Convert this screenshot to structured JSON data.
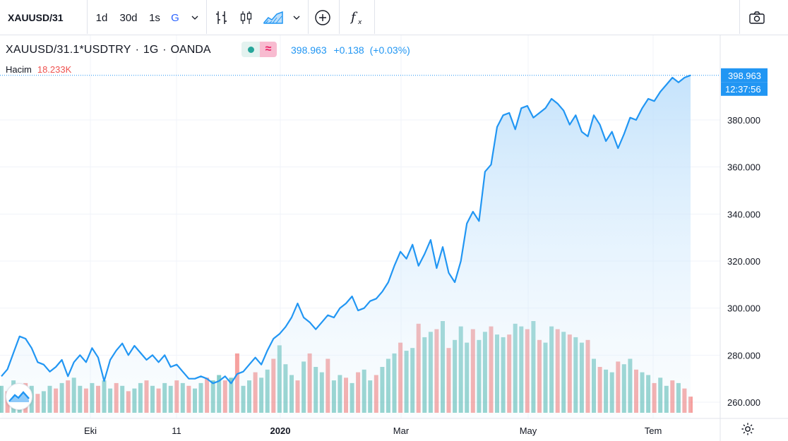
{
  "toolbar": {
    "symbol": "XAUUSD/31",
    "intervals": [
      "1d",
      "30d",
      "1s",
      "G"
    ],
    "active_interval": "G",
    "icons": [
      "chevron-down-icon",
      "bar-chart-icon",
      "candlestick-icon",
      "area-chart-icon",
      "chevron-down-icon",
      "add-compare-icon",
      "function-icon",
      "camera-icon"
    ]
  },
  "legend": {
    "symbol_full": "XAUUSD/31.1*USDTRY",
    "interval": "1G",
    "source": "OANDA",
    "last": "398.963",
    "change": "+0.138",
    "change_pct": "(+0.03%)",
    "volume_label": "Hacim",
    "volume_value": "18.233K",
    "status_symbol": "≈"
  },
  "price_tag": {
    "price": "398.963",
    "countdown": "12:37:56"
  },
  "colors": {
    "line": "#2196f3",
    "area_top": "#bbdefb",
    "vol_up": "#26a69a",
    "vol_down": "#ef5350",
    "tag_bg": "#2196f3"
  },
  "chart_data": {
    "type": "area",
    "y_axis": {
      "ticks": [
        "260.000",
        "280.000",
        "300.000",
        "320.000",
        "340.000",
        "360.000",
        "380.000"
      ],
      "ylim": [
        255,
        405
      ]
    },
    "x_axis": {
      "ticks": [
        "Eki",
        "11",
        "2020",
        "Mar",
        "May",
        "Tem"
      ],
      "bold": [
        "2020"
      ]
    },
    "grid": true,
    "series": [
      {
        "values": [
          271,
          274,
          281,
          288,
          287,
          283,
          277,
          276,
          273,
          275,
          278,
          271,
          277,
          280,
          277,
          283,
          279,
          269,
          278,
          282,
          285,
          280,
          284,
          281,
          278,
          280,
          277,
          280,
          275,
          276,
          273,
          270,
          270,
          271,
          270,
          268,
          269,
          271,
          268,
          272,
          273,
          276,
          279,
          276,
          282,
          287,
          289,
          292,
          296,
          302,
          296,
          294,
          291,
          294,
          297,
          296,
          300,
          302,
          305,
          299,
          300,
          303,
          304,
          307,
          311,
          318,
          324,
          321,
          327,
          318,
          323,
          329,
          317,
          326,
          315,
          311,
          320,
          336,
          341,
          337,
          358,
          361,
          377,
          382,
          383,
          376,
          385,
          386,
          381,
          383,
          385,
          389,
          387,
          384,
          378,
          382,
          375,
          373,
          382,
          378,
          371,
          375,
          368,
          374,
          381,
          380,
          385,
          389,
          388,
          392,
          395,
          398,
          396,
          398,
          399
        ]
      }
    ],
    "volume": {
      "values": [
        10,
        8,
        12,
        9,
        11,
        10,
        7,
        8,
        10,
        9,
        11,
        12,
        13,
        10,
        9,
        11,
        10,
        12,
        9,
        11,
        10,
        8,
        9,
        11,
        12,
        10,
        9,
        11,
        10,
        12,
        11,
        10,
        9,
        11,
        13,
        12,
        14,
        12,
        13,
        22,
        10,
        12,
        15,
        13,
        16,
        20,
        25,
        18,
        14,
        12,
        19,
        22,
        17,
        15,
        20,
        12,
        14,
        13,
        11,
        15,
        16,
        12,
        14,
        17,
        20,
        22,
        26,
        23,
        24,
        33,
        28,
        30,
        31,
        34,
        24,
        27,
        32,
        26,
        31,
        27,
        30,
        32,
        29,
        28,
        29,
        33,
        32,
        31,
        34,
        27,
        26,
        32,
        31,
        30,
        29,
        28,
        26,
        27,
        20,
        17,
        16,
        15,
        19,
        18,
        20,
        16,
        15,
        14,
        11,
        13,
        10,
        12,
        11,
        9,
        6
      ],
      "up": [
        1,
        0,
        1,
        1,
        0,
        1,
        0,
        1,
        1,
        0,
        1,
        0,
        1,
        1,
        0,
        1,
        0,
        1,
        1,
        0,
        1,
        0,
        1,
        1,
        0,
        1,
        0,
        1,
        1,
        0,
        1,
        0,
        1,
        1,
        0,
        1,
        1,
        0,
        1,
        0,
        1,
        1,
        0,
        1,
        1,
        0,
        1,
        1,
        1,
        0,
        1,
        0,
        1,
        1,
        0,
        1,
        1,
        0,
        1,
        0,
        1,
        1,
        0,
        1,
        1,
        1,
        0,
        1,
        1,
        0,
        1,
        1,
        0,
        1,
        0,
        1,
        1,
        1,
        0,
        1,
        1,
        0,
        1,
        1,
        0,
        1,
        1,
        0,
        1,
        0,
        1,
        1,
        0,
        1,
        0,
        1,
        1,
        0,
        1,
        0,
        1,
        1,
        0,
        1,
        1,
        0,
        1,
        1,
        0,
        1,
        1,
        0,
        1,
        0,
        0
      ]
    }
  }
}
